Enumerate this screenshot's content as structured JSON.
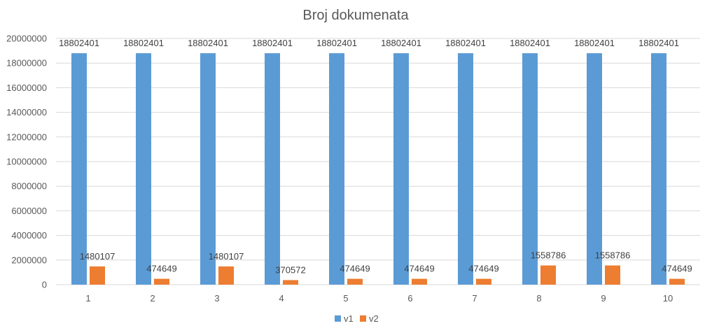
{
  "chart_data": {
    "type": "bar",
    "title": "Broj dokumenata",
    "xlabel": "",
    "ylabel": "",
    "categories": [
      "1",
      "2",
      "3",
      "4",
      "5",
      "6",
      "7",
      "8",
      "9",
      "10"
    ],
    "series": [
      {
        "name": "v1",
        "color": "#5b9bd5",
        "values": [
          18802401,
          18802401,
          18802401,
          18802401,
          18802401,
          18802401,
          18802401,
          18802401,
          18802401,
          18802401
        ]
      },
      {
        "name": "v2",
        "color": "#ed7d31",
        "values": [
          1480107,
          474649,
          1480107,
          370572,
          474649,
          474649,
          474649,
          1558786,
          1558786,
          474649
        ]
      }
    ],
    "ylim": [
      0,
      20000000
    ],
    "yticks": [
      "0",
      "2000000",
      "4000000",
      "6000000",
      "8000000",
      "10000000",
      "12000000",
      "14000000",
      "16000000",
      "18000000",
      "20000000"
    ],
    "grid": true,
    "legend": "bottom"
  }
}
